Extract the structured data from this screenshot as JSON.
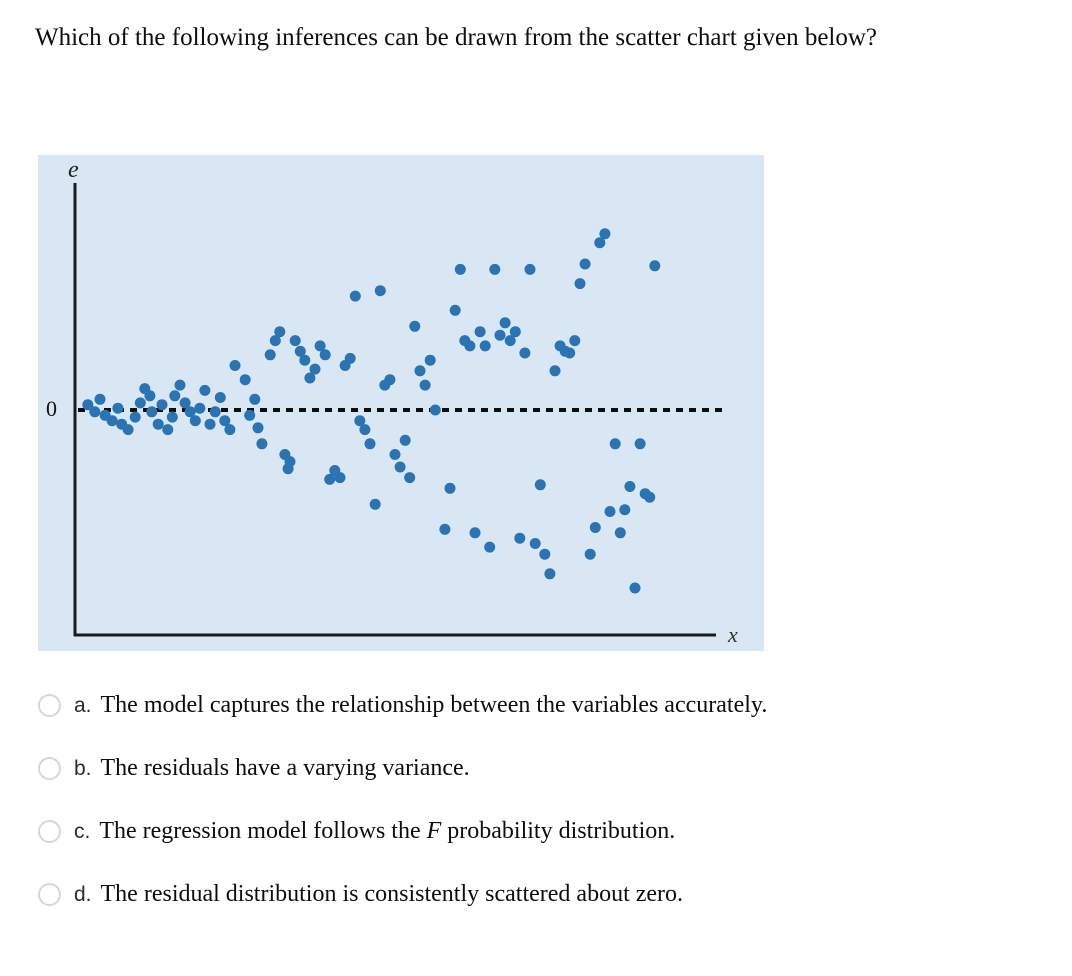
{
  "question": "Which of the following inferences can be drawn from the scatter chart given below?",
  "chart": {
    "y_axis_label": "e",
    "zero_label": "0",
    "x_axis_label": "x",
    "dot_color": "#2b73b1",
    "background": "#d9e7f4"
  },
  "chart_data": {
    "type": "scatter",
    "title": "",
    "xlabel": "x",
    "ylabel": "e",
    "description": "Residual plot: residuals centered on dashed zero line, spread (variance) increases as x increases (funnel / heteroscedastic pattern)",
    "xlim": [
      0,
      100
    ],
    "ylim": [
      -1.1,
      1.1
    ],
    "zero_line": 0,
    "grid": false,
    "legend": false,
    "points": [
      [
        2.0,
        0.03
      ],
      [
        3.1,
        -0.01
      ],
      [
        3.9,
        0.06
      ],
      [
        4.7,
        -0.03
      ],
      [
        5.8,
        -0.06
      ],
      [
        6.7,
        0.01
      ],
      [
        7.3,
        -0.08
      ],
      [
        8.3,
        -0.11
      ],
      [
        9.4,
        -0.04
      ],
      [
        10.2,
        0.04
      ],
      [
        10.9,
        0.12
      ],
      [
        11.7,
        0.08
      ],
      [
        12.0,
        -0.01
      ],
      [
        13.0,
        -0.08
      ],
      [
        13.6,
        0.03
      ],
      [
        14.5,
        -0.11
      ],
      [
        15.2,
        -0.04
      ],
      [
        15.6,
        0.08
      ],
      [
        16.4,
        0.14
      ],
      [
        17.2,
        0.04
      ],
      [
        18.0,
        -0.01
      ],
      [
        18.8,
        -0.06
      ],
      [
        19.5,
        0.01
      ],
      [
        20.3,
        0.11
      ],
      [
        21.1,
        -0.08
      ],
      [
        21.9,
        -0.01
      ],
      [
        22.7,
        0.07
      ],
      [
        23.4,
        -0.06
      ],
      [
        24.2,
        -0.11
      ],
      [
        25.0,
        0.25
      ],
      [
        26.6,
        0.17
      ],
      [
        27.3,
        -0.03
      ],
      [
        28.1,
        0.06
      ],
      [
        28.6,
        -0.1
      ],
      [
        29.2,
        -0.19
      ],
      [
        30.5,
        0.31
      ],
      [
        31.3,
        0.39
      ],
      [
        32.0,
        0.44
      ],
      [
        32.8,
        -0.25
      ],
      [
        33.3,
        -0.33
      ],
      [
        33.6,
        -0.29
      ],
      [
        34.4,
        0.39
      ],
      [
        35.2,
        0.33
      ],
      [
        35.9,
        0.28
      ],
      [
        36.7,
        0.18
      ],
      [
        37.5,
        0.23
      ],
      [
        38.3,
        0.36
      ],
      [
        39.1,
        0.31
      ],
      [
        39.8,
        -0.39
      ],
      [
        40.6,
        -0.34
      ],
      [
        41.4,
        -0.38
      ],
      [
        42.2,
        0.25
      ],
      [
        43.0,
        0.29
      ],
      [
        43.8,
        0.64
      ],
      [
        44.5,
        -0.06
      ],
      [
        45.3,
        -0.11
      ],
      [
        46.1,
        -0.19
      ],
      [
        46.9,
        -0.53
      ],
      [
        47.7,
        0.67
      ],
      [
        48.4,
        0.14
      ],
      [
        49.2,
        0.17
      ],
      [
        50.0,
        -0.25
      ],
      [
        50.8,
        -0.32
      ],
      [
        51.6,
        -0.17
      ],
      [
        52.3,
        -0.38
      ],
      [
        53.1,
        0.47
      ],
      [
        53.9,
        0.22
      ],
      [
        54.7,
        0.14
      ],
      [
        55.5,
        0.28
      ],
      [
        56.3,
        0.0
      ],
      [
        57.8,
        -0.67
      ],
      [
        58.6,
        -0.44
      ],
      [
        59.4,
        0.56
      ],
      [
        60.2,
        0.79
      ],
      [
        60.9,
        0.39
      ],
      [
        61.7,
        0.36
      ],
      [
        62.5,
        -0.69
      ],
      [
        63.3,
        0.44
      ],
      [
        64.1,
        0.36
      ],
      [
        64.8,
        -0.77
      ],
      [
        65.6,
        0.79
      ],
      [
        66.4,
        0.42
      ],
      [
        67.2,
        0.49
      ],
      [
        68.0,
        0.39
      ],
      [
        68.8,
        0.44
      ],
      [
        69.5,
        -0.72
      ],
      [
        70.3,
        0.32
      ],
      [
        71.1,
        0.79
      ],
      [
        71.9,
        -0.75
      ],
      [
        72.7,
        -0.42
      ],
      [
        73.4,
        -0.81
      ],
      [
        74.2,
        -0.92
      ],
      [
        75.0,
        0.22
      ],
      [
        75.8,
        0.36
      ],
      [
        76.6,
        0.33
      ],
      [
        77.3,
        0.32
      ],
      [
        78.1,
        0.39
      ],
      [
        78.9,
        0.71
      ],
      [
        79.7,
        0.82
      ],
      [
        80.5,
        -0.81
      ],
      [
        81.3,
        -0.66
      ],
      [
        82.0,
        0.94
      ],
      [
        82.8,
        0.99
      ],
      [
        83.6,
        -0.57
      ],
      [
        84.4,
        -0.19
      ],
      [
        85.2,
        -0.69
      ],
      [
        85.9,
        -0.56
      ],
      [
        86.7,
        -0.43
      ],
      [
        87.5,
        -1.0
      ],
      [
        88.3,
        -0.19
      ],
      [
        89.1,
        -0.47
      ],
      [
        89.8,
        -0.49
      ],
      [
        90.6,
        0.81
      ]
    ]
  },
  "options": [
    {
      "letter": "a.",
      "parts": [
        {
          "text": "The model captures the relationship between the variables accurately."
        }
      ]
    },
    {
      "letter": "b.",
      "parts": [
        {
          "text": "The residuals have a varying variance."
        }
      ]
    },
    {
      "letter": "c.",
      "parts": [
        {
          "text": "The regression model follows the "
        },
        {
          "text": "F",
          "italic": true
        },
        {
          "text": " probability distribution."
        }
      ]
    },
    {
      "letter": "d.",
      "parts": [
        {
          "text": "The residual distribution is consistently scattered about zero."
        }
      ]
    }
  ]
}
